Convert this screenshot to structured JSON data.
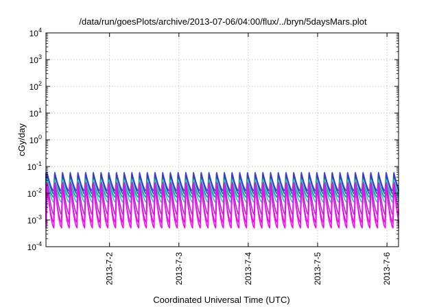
{
  "chart_data": {
    "type": "line",
    "title": "/data/run/goesPlots/archive/2013-07-06/04:00/flux/../bryn/5daysMars.plot",
    "xlabel": "Coordinated Universal Time (UTC)",
    "ylabel": "cGy/day",
    "y_scale": "log",
    "ylim": [
      0.0001,
      10000
    ],
    "y_ticks": [
      {
        "base": "10",
        "exp": "-4"
      },
      {
        "base": "10",
        "exp": "-3"
      },
      {
        "base": "10",
        "exp": "-2"
      },
      {
        "base": "10",
        "exp": "-1"
      },
      {
        "base": "10",
        "exp": "0"
      },
      {
        "base": "10",
        "exp": "1"
      },
      {
        "base": "10",
        "exp": "2"
      },
      {
        "base": "10",
        "exp": "3"
      },
      {
        "base": "10",
        "exp": "4"
      }
    ],
    "xlim": [
      "2013-07-01T02:00",
      "2013-07-06T04:00"
    ],
    "x_ticks": [
      "2013-7-2",
      "2013-7-3",
      "2013-7-4",
      "2013-7-5",
      "2013-7-6"
    ],
    "grid": true,
    "pattern": {
      "cycles_per_day": 9,
      "description": "sawtooth: sharp rise then decay, repeated each cycle"
    },
    "series": [
      {
        "color": "#c0392b",
        "peak": 0.055,
        "trough": 0.012
      },
      {
        "color": "#3050e0",
        "peak": 0.06,
        "trough": 0.012
      },
      {
        "color": "#3a3ac8",
        "peak": 0.05,
        "trough": 0.009
      },
      {
        "color": "#00a878",
        "peak": 0.035,
        "trough": 0.007
      },
      {
        "color": "#20c8d8",
        "peak": 0.03,
        "trough": 0.0045
      },
      {
        "color": "#9b30c0",
        "peak": 0.025,
        "trough": 0.0015
      },
      {
        "color": "#e01ad0",
        "peak": 0.022,
        "trough": 0.0008
      },
      {
        "color": "#ff00ff",
        "peak": 0.02,
        "trough": 0.0005
      }
    ]
  }
}
